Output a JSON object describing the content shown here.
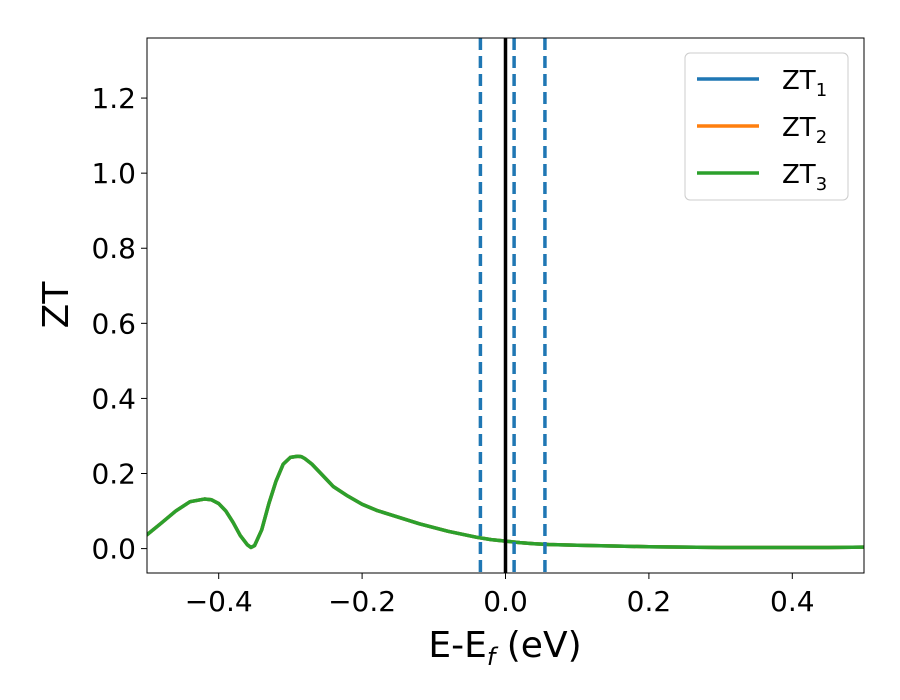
{
  "chart_data": {
    "type": "line",
    "title": "",
    "xlabel": "E-E",
    "xlabel_sub": "f",
    "xlabel_unit": " (eV)",
    "ylabel": "ZT",
    "xlim": [
      -0.5,
      0.5
    ],
    "ylim": [
      -0.065,
      1.36
    ],
    "x_ticks": [
      -0.4,
      -0.2,
      0.0,
      0.2,
      0.4
    ],
    "x_tick_labels": [
      "−0.4",
      "−0.2",
      "0.0",
      "0.2",
      "0.4"
    ],
    "y_ticks": [
      0.0,
      0.2,
      0.4,
      0.6,
      0.8,
      1.0,
      1.2
    ],
    "y_tick_labels": [
      "0.0",
      "0.2",
      "0.4",
      "0.6",
      "0.8",
      "1.0",
      "1.2"
    ],
    "grid": false,
    "legend_position": "top-right",
    "vertical_lines": [
      {
        "x": 0.0,
        "style": "solid",
        "color": "#000000"
      },
      {
        "x": -0.035,
        "style": "dashed",
        "color": "#1f77b4"
      },
      {
        "x": 0.012,
        "style": "dashed",
        "color": "#1f77b4"
      },
      {
        "x": 0.055,
        "style": "dashed",
        "color": "#1f77b4"
      }
    ],
    "x": [
      -0.5,
      -0.48,
      -0.46,
      -0.44,
      -0.42,
      -0.41,
      -0.4,
      -0.39,
      -0.38,
      -0.37,
      -0.36,
      -0.355,
      -0.35,
      -0.34,
      -0.33,
      -0.32,
      -0.31,
      -0.3,
      -0.29,
      -0.285,
      -0.28,
      -0.27,
      -0.26,
      -0.25,
      -0.24,
      -0.22,
      -0.2,
      -0.18,
      -0.16,
      -0.14,
      -0.12,
      -0.1,
      -0.08,
      -0.06,
      -0.04,
      -0.02,
      0.0,
      0.02,
      0.04,
      0.06,
      0.08,
      0.1,
      0.15,
      0.2,
      0.25,
      0.3,
      0.35,
      0.4,
      0.45,
      0.5
    ],
    "series": [
      {
        "name": "ZT",
        "sub": "1",
        "color": "#1f77b4",
        "values": [
          0.037,
          0.068,
          0.1,
          0.125,
          0.132,
          0.13,
          0.12,
          0.1,
          0.07,
          0.035,
          0.01,
          0.003,
          0.008,
          0.05,
          0.12,
          0.18,
          0.225,
          0.243,
          0.246,
          0.245,
          0.24,
          0.225,
          0.205,
          0.185,
          0.165,
          0.14,
          0.118,
          0.102,
          0.09,
          0.078,
          0.066,
          0.056,
          0.046,
          0.038,
          0.03,
          0.024,
          0.02,
          0.016,
          0.013,
          0.011,
          0.01,
          0.009,
          0.007,
          0.005,
          0.004,
          0.003,
          0.003,
          0.003,
          0.003,
          0.004
        ]
      },
      {
        "name": "ZT",
        "sub": "2",
        "color": "#ff7f0e",
        "values": [
          0.037,
          0.068,
          0.1,
          0.125,
          0.132,
          0.13,
          0.12,
          0.1,
          0.07,
          0.035,
          0.01,
          0.003,
          0.008,
          0.05,
          0.12,
          0.18,
          0.225,
          0.243,
          0.246,
          0.245,
          0.24,
          0.225,
          0.205,
          0.185,
          0.165,
          0.14,
          0.118,
          0.102,
          0.09,
          0.078,
          0.066,
          0.056,
          0.046,
          0.038,
          0.03,
          0.024,
          0.02,
          0.016,
          0.013,
          0.011,
          0.01,
          0.009,
          0.007,
          0.005,
          0.004,
          0.003,
          0.003,
          0.003,
          0.003,
          0.004
        ]
      },
      {
        "name": "ZT",
        "sub": "3",
        "color": "#2ca02c",
        "values": [
          0.037,
          0.068,
          0.1,
          0.125,
          0.132,
          0.13,
          0.12,
          0.1,
          0.07,
          0.035,
          0.01,
          0.003,
          0.008,
          0.05,
          0.12,
          0.18,
          0.225,
          0.243,
          0.246,
          0.245,
          0.24,
          0.225,
          0.205,
          0.185,
          0.165,
          0.14,
          0.118,
          0.102,
          0.09,
          0.078,
          0.066,
          0.056,
          0.046,
          0.038,
          0.03,
          0.024,
          0.02,
          0.016,
          0.013,
          0.011,
          0.01,
          0.009,
          0.007,
          0.005,
          0.004,
          0.003,
          0.003,
          0.003,
          0.003,
          0.004
        ]
      }
    ]
  }
}
